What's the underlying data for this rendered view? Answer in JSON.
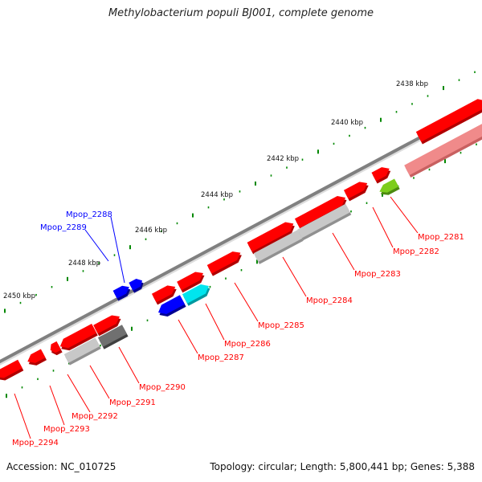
{
  "title": "Methylobacterium populi BJ001, complete genome",
  "footer": {
    "accession": "Accession: NC_010725",
    "info": "Topology: circular; Length: 5,800,441 bp; Genes: 5,388"
  },
  "colors": {
    "forward_gene": "#ff0000",
    "reverse_gene": "#ff0000",
    "blue_gene": "#0000ff",
    "cyan_gene": "#00e5ee",
    "light_gray_gene": "#c8c8c8",
    "dark_gray_gene": "#707070",
    "green_gene": "#7ccd1c",
    "pink_gene": "#f08a8a",
    "backbone": "#808080",
    "tick_dot": "#008800",
    "label_red": "#ff0000",
    "label_blue": "#0000ff"
  },
  "kbp_labels": [
    "2438 kbp",
    "2440 kbp",
    "2442 kbp",
    "2444 kbp",
    "2446 kbp",
    "2448 kbp",
    "2450 kbp"
  ],
  "gene_labels": [
    {
      "text": "Mpop_2281",
      "color": "red"
    },
    {
      "text": "Mpop_2282",
      "color": "red"
    },
    {
      "text": "Mpop_2283",
      "color": "red"
    },
    {
      "text": "Mpop_2284",
      "color": "red"
    },
    {
      "text": "Mpop_2285",
      "color": "red"
    },
    {
      "text": "Mpop_2286",
      "color": "red"
    },
    {
      "text": "Mpop_2287",
      "color": "red"
    },
    {
      "text": "Mpop_2288",
      "color": "blue"
    },
    {
      "text": "Mpop_2289",
      "color": "blue"
    },
    {
      "text": "Mpop_2290",
      "color": "red"
    },
    {
      "text": "Mpop_2291",
      "color": "red"
    },
    {
      "text": "Mpop_2292",
      "color": "red"
    },
    {
      "text": "Mpop_2293",
      "color": "red"
    },
    {
      "text": "Mpop_2294",
      "color": "red"
    }
  ]
}
